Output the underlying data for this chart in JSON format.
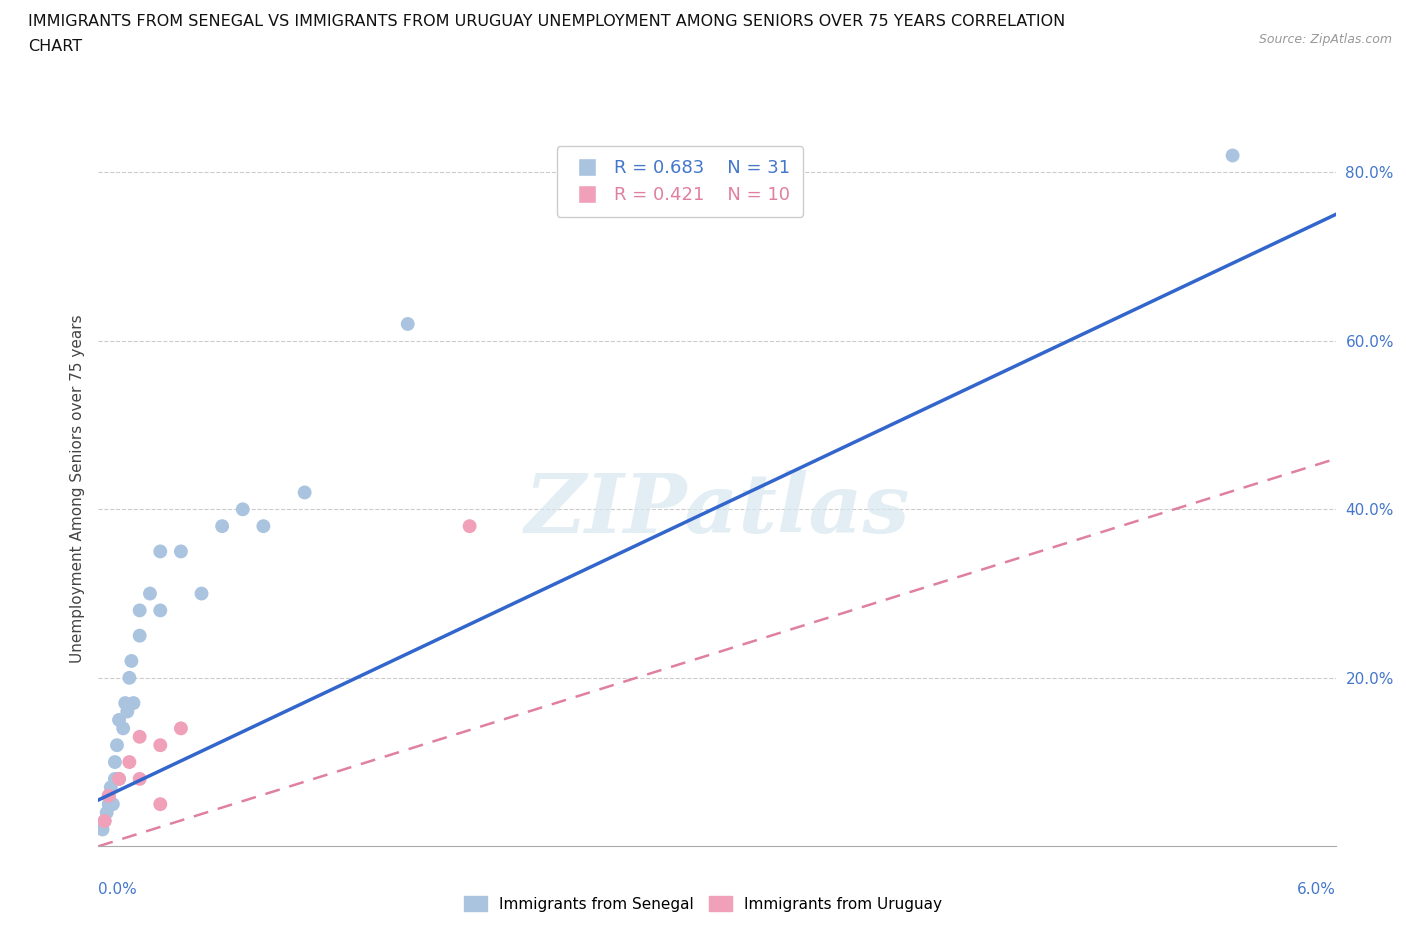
{
  "title_line1": "IMMIGRANTS FROM SENEGAL VS IMMIGRANTS FROM URUGUAY UNEMPLOYMENT AMONG SENIORS OVER 75 YEARS CORRELATION",
  "title_line2": "CHART",
  "source": "Source: ZipAtlas.com",
  "ylabel": "Unemployment Among Seniors over 75 years",
  "xlim": [
    0.0,
    0.06
  ],
  "ylim": [
    0.0,
    0.85
  ],
  "senegal_r": 0.683,
  "senegal_n": 31,
  "uruguay_r": 0.421,
  "uruguay_n": 10,
  "senegal_color": "#aac4e0",
  "uruguay_color": "#f0a0b8",
  "senegal_line_color": "#3366cc",
  "uruguay_line_color": "#e080a0",
  "ytick_positions": [
    0.2,
    0.4,
    0.6,
    0.8
  ],
  "ytick_labels": [
    "20.0%",
    "40.0%",
    "60.0%",
    "80.0%"
  ],
  "watermark_text": "ZIPatlas",
  "senegal_x": [
    0.0002,
    0.0003,
    0.0004,
    0.0005,
    0.0005,
    0.0006,
    0.0007,
    0.0008,
    0.0008,
    0.0009,
    0.001,
    0.001,
    0.0012,
    0.0013,
    0.0014,
    0.0015,
    0.0016,
    0.0017,
    0.002,
    0.002,
    0.0025,
    0.003,
    0.003,
    0.004,
    0.005,
    0.006,
    0.007,
    0.008,
    0.01,
    0.015,
    0.055
  ],
  "senegal_y": [
    0.02,
    0.03,
    0.04,
    0.05,
    0.06,
    0.07,
    0.05,
    0.08,
    0.1,
    0.12,
    0.08,
    0.15,
    0.14,
    0.17,
    0.16,
    0.2,
    0.22,
    0.17,
    0.25,
    0.28,
    0.3,
    0.28,
    0.35,
    0.35,
    0.3,
    0.38,
    0.4,
    0.38,
    0.42,
    0.62,
    0.82
  ],
  "uruguay_x": [
    0.0003,
    0.0005,
    0.001,
    0.0015,
    0.002,
    0.002,
    0.003,
    0.003,
    0.004,
    0.018
  ],
  "uruguay_y": [
    0.03,
    0.06,
    0.08,
    0.1,
    0.08,
    0.13,
    0.12,
    0.05,
    0.14,
    0.38
  ],
  "senegal_line_x0": 0.0,
  "senegal_line_y0": 0.055,
  "senegal_line_x1": 0.06,
  "senegal_line_y1": 0.75,
  "uruguay_line_x0": 0.0,
  "uruguay_line_y0": 0.0,
  "uruguay_line_x1": 0.06,
  "uruguay_line_y1": 0.46
}
